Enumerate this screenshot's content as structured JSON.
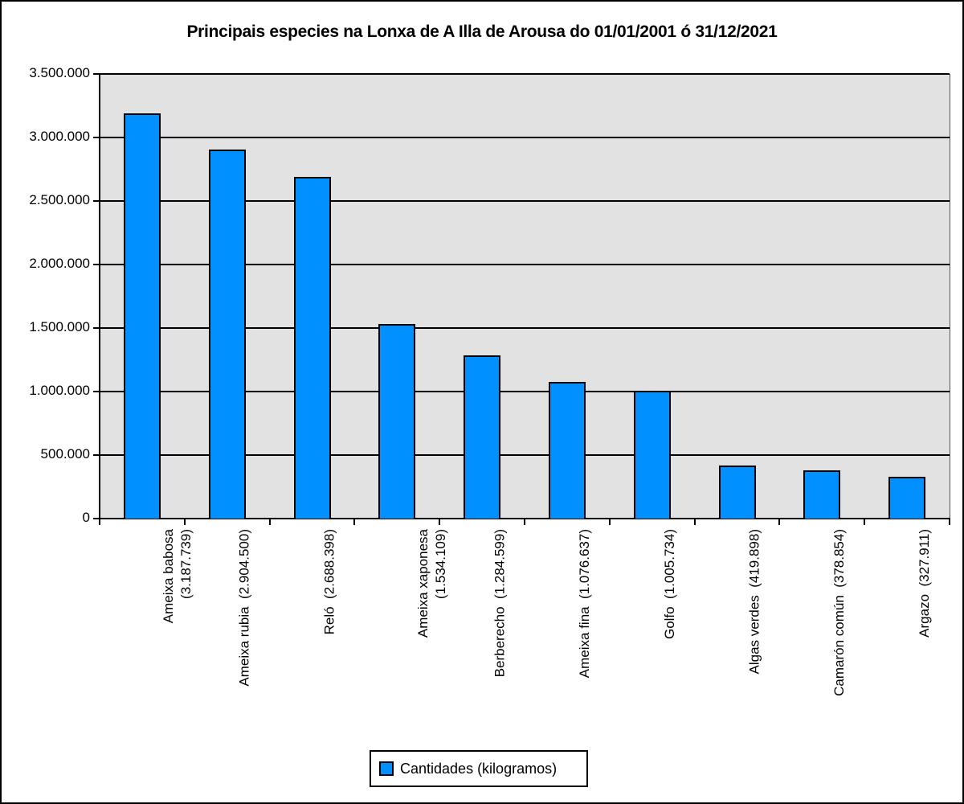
{
  "chart": {
    "title": "Principais especies na Lonxa de A Illa de Arousa do 01/01/2001 ó 31/12/2021",
    "legend_label": "Cantidades (kilogramos)",
    "y_ticks": [
      "0",
      "500.000",
      "1.000.000",
      "1.500.000",
      "2.000.000",
      "2.500.000",
      "3.000.000",
      "3.500.000"
    ],
    "x_labels": [
      "Ameixa babosa\n(3.187.739)",
      "Ameixa rubia  (2.904.500)",
      "Reló  (2.688.398)",
      "Ameixa xaponesa\n(1.534.109)",
      "Berberecho  (1.284.599)",
      "Ameixa fina  (1.076.637)",
      "Golfo  (1.005.734)",
      "Algas verdes  (419.898)",
      "Camarón común  (378.854)",
      "Argazo  (327.911)"
    ],
    "colors": {
      "bar": "#0090ff",
      "plot_bg": "#e2e2e2",
      "grid": "#000000"
    }
  },
  "chart_data": {
    "type": "bar",
    "title": "Principais especies na Lonxa de A Illa de Arousa do 01/01/2001 ó 31/12/2021",
    "xlabel": "",
    "ylabel": "",
    "categories": [
      "Ameixa babosa",
      "Ameixa rubia",
      "Reló",
      "Ameixa xaponesa",
      "Berberecho",
      "Ameixa fina",
      "Golfo",
      "Algas verdes",
      "Camarón común",
      "Argazo"
    ],
    "series": [
      {
        "name": "Cantidades (kilogramos)",
        "values": [
          3187739,
          2904500,
          2688398,
          1534109,
          1284599,
          1076637,
          1005734,
          419898,
          378854,
          327911
        ]
      }
    ],
    "ylim": [
      0,
      3500000
    ],
    "y_tick_step": 500000,
    "grid": true,
    "legend_position": "bottom"
  }
}
